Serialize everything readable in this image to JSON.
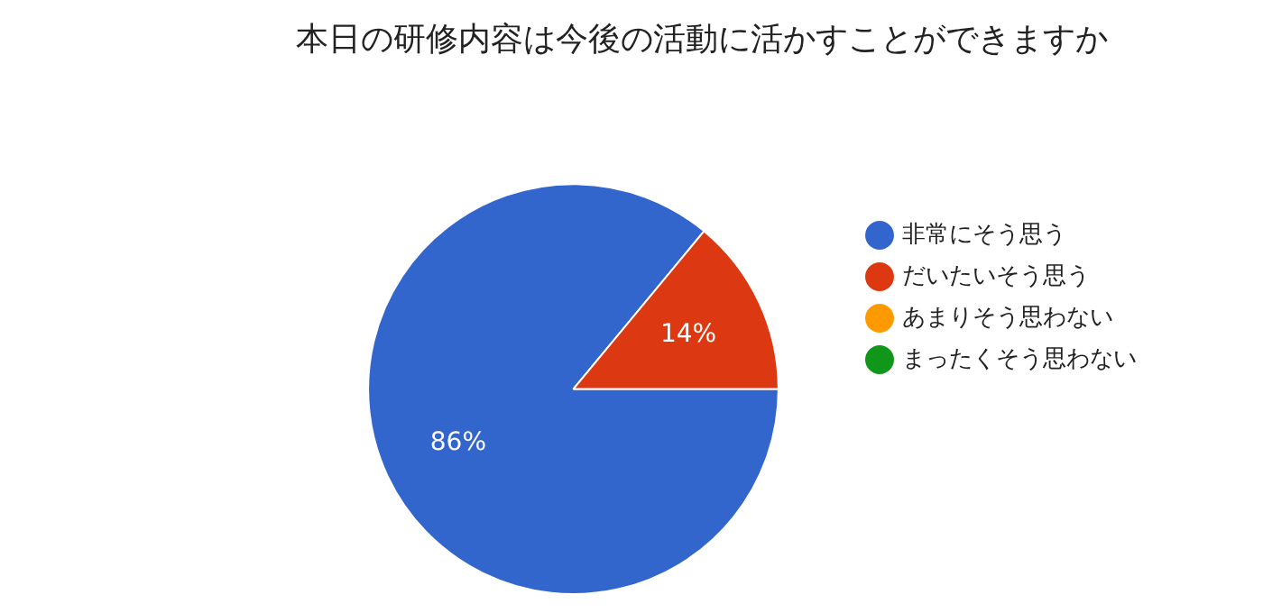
{
  "chart_data": {
    "type": "pie",
    "title": "本日の研修内容は今後の活動に活かすことができますか",
    "categories": [
      "非常にそう思う",
      "だいたいそう思う",
      "あまりそう思わない",
      "まったくそう思わない"
    ],
    "values": [
      86,
      14,
      0,
      0
    ],
    "colors": [
      "#3366cc",
      "#dc3912",
      "#ff9900",
      "#109618"
    ],
    "value_labels": [
      "86%",
      "14%",
      null,
      null
    ],
    "legend": "right"
  }
}
